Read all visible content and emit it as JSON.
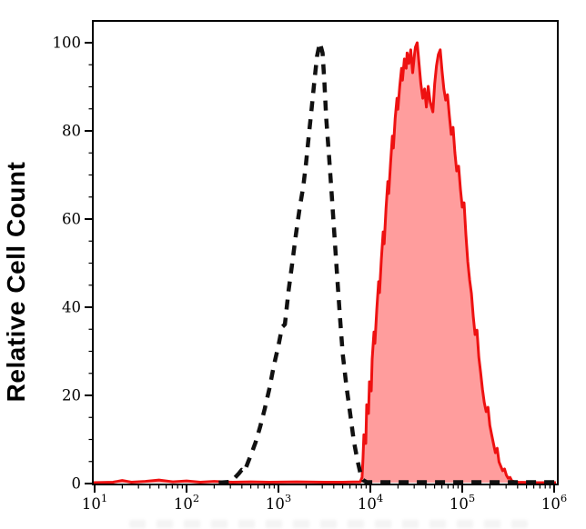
{
  "figure": {
    "background_color": "#ffffff",
    "axis_color": "#000000"
  },
  "chart_data": {
    "type": "line",
    "subtype": "flow-cytometry-histogram-overlay",
    "title": "",
    "xlabel": "",
    "ylabel": "Relative Cell Count",
    "x_scale": "log10",
    "x_tick_labels": [
      "10¹",
      "10²",
      "10³",
      "10⁴",
      "10⁵",
      "10⁶"
    ],
    "x_tick_exponents": [
      1,
      2,
      3,
      4,
      5,
      6
    ],
    "x_minor_ticks": "log-spaced 2-9 within each decade",
    "xlim_exponents": [
      0.98,
      6.04
    ],
    "y_ticks": [
      0,
      20,
      40,
      60,
      80,
      100
    ],
    "y_minor_step": 5,
    "ylim": [
      0,
      105
    ],
    "grid": false,
    "legend_position": "none",
    "series": [
      {
        "name": "dashed-black-histogram",
        "line_style": "dashed",
        "color": "#111111",
        "fill": "none",
        "peak_x_log10": 3.45,
        "peak_value": 100,
        "points_log10x_value": [
          [
            2.35,
            0.2
          ],
          [
            2.48,
            0.4
          ],
          [
            2.52,
            1.2
          ],
          [
            2.57,
            2.3
          ],
          [
            2.6,
            3.1
          ],
          [
            2.63,
            2.7
          ],
          [
            2.67,
            4.9
          ],
          [
            2.71,
            7.0
          ],
          [
            2.75,
            9.3
          ],
          [
            2.8,
            12.8
          ],
          [
            2.85,
            16.9
          ],
          [
            2.9,
            21.4
          ],
          [
            2.95,
            26.8
          ],
          [
            3.0,
            31.3
          ],
          [
            3.04,
            35.5
          ],
          [
            3.07,
            36.1
          ],
          [
            3.11,
            43.7
          ],
          [
            3.15,
            49.9
          ],
          [
            3.19,
            56.5
          ],
          [
            3.23,
            62.3
          ],
          [
            3.27,
            67.4
          ],
          [
            3.3,
            72.6
          ],
          [
            3.33,
            78.8
          ],
          [
            3.36,
            84.9
          ],
          [
            3.39,
            91.1
          ],
          [
            3.42,
            96.9
          ],
          [
            3.45,
            100
          ],
          [
            3.48,
            97.7
          ],
          [
            3.5,
            91.1
          ],
          [
            3.52,
            82.9
          ],
          [
            3.55,
            74.6
          ],
          [
            3.58,
            65.4
          ],
          [
            3.61,
            56.1
          ],
          [
            3.64,
            46.8
          ],
          [
            3.67,
            37.5
          ],
          [
            3.7,
            29.3
          ],
          [
            3.74,
            22.1
          ],
          [
            3.78,
            15.9
          ],
          [
            3.82,
            9.7
          ],
          [
            3.86,
            5.2
          ],
          [
            3.89,
            2.5
          ],
          [
            3.92,
            0.8
          ],
          [
            3.96,
            0.3
          ],
          [
            4.2,
            0.3
          ],
          [
            4.6,
            0.3
          ],
          [
            5.0,
            0.3
          ],
          [
            5.4,
            0.3
          ],
          [
            5.8,
            0.3
          ],
          [
            6.02,
            0.3
          ]
        ]
      },
      {
        "name": "red-filled-histogram",
        "line_style": "solid",
        "color": "#ee1111",
        "fill": "#ff9d9d",
        "peak_x_log10": 4.51,
        "peak_value": 100,
        "points_log10x_value": [
          [
            0.98,
            0.2
          ],
          [
            1.2,
            0.3
          ],
          [
            1.3,
            0.7
          ],
          [
            1.4,
            0.3
          ],
          [
            1.55,
            0.5
          ],
          [
            1.7,
            0.8
          ],
          [
            1.85,
            0.4
          ],
          [
            2.0,
            0.6
          ],
          [
            2.15,
            0.3
          ],
          [
            2.3,
            0.5
          ],
          [
            2.5,
            0.3
          ],
          [
            2.7,
            0.4
          ],
          [
            2.9,
            0.3
          ],
          [
            3.2,
            0.4
          ],
          [
            3.5,
            0.3
          ],
          [
            3.7,
            0.3
          ],
          [
            3.89,
            0.4
          ],
          [
            3.91,
            1.4
          ],
          [
            3.92,
            5.6
          ],
          [
            3.93,
            11.1
          ],
          [
            3.95,
            9.1
          ],
          [
            3.96,
            17.9
          ],
          [
            3.98,
            15.9
          ],
          [
            3.99,
            23.1
          ],
          [
            4.01,
            21.0
          ],
          [
            4.02,
            28.2
          ],
          [
            4.04,
            34.4
          ],
          [
            4.05,
            31.8
          ],
          [
            4.07,
            39.6
          ],
          [
            4.09,
            45.8
          ],
          [
            4.1,
            43.3
          ],
          [
            4.12,
            50.9
          ],
          [
            4.14,
            57.1
          ],
          [
            4.15,
            54.4
          ],
          [
            4.17,
            62.3
          ],
          [
            4.19,
            68.5
          ],
          [
            4.2,
            65.8
          ],
          [
            4.22,
            72.6
          ],
          [
            4.24,
            78.8
          ],
          [
            4.25,
            76.1
          ],
          [
            4.27,
            82.9
          ],
          [
            4.29,
            87.4
          ],
          [
            4.3,
            84.9
          ],
          [
            4.32,
            90.1
          ],
          [
            4.34,
            94.2
          ],
          [
            4.35,
            91.5
          ],
          [
            4.37,
            96.3
          ],
          [
            4.39,
            94.2
          ],
          [
            4.4,
            97.7
          ],
          [
            4.42,
            95.3
          ],
          [
            4.44,
            98.4
          ],
          [
            4.46,
            93.2
          ],
          [
            4.48,
            97.3
          ],
          [
            4.49,
            99.0
          ],
          [
            4.51,
            100
          ],
          [
            4.53,
            95.3
          ],
          [
            4.55,
            90.7
          ],
          [
            4.57,
            87.4
          ],
          [
            4.59,
            89.5
          ],
          [
            4.61,
            85.4
          ],
          [
            4.63,
            90.1
          ],
          [
            4.65,
            86.6
          ],
          [
            4.68,
            84.3
          ],
          [
            4.7,
            90.7
          ],
          [
            4.72,
            94.8
          ],
          [
            4.74,
            97.3
          ],
          [
            4.76,
            98.4
          ],
          [
            4.78,
            93.6
          ],
          [
            4.8,
            89.5
          ],
          [
            4.82,
            87.0
          ],
          [
            4.84,
            88.2
          ],
          [
            4.86,
            83.3
          ],
          [
            4.88,
            79.2
          ],
          [
            4.9,
            80.8
          ],
          [
            4.92,
            75.1
          ],
          [
            4.94,
            70.9
          ],
          [
            4.96,
            72.0
          ],
          [
            4.98,
            66.8
          ],
          [
            5.0,
            62.7
          ],
          [
            5.02,
            63.7
          ],
          [
            5.04,
            56.5
          ],
          [
            5.06,
            50.3
          ],
          [
            5.08,
            46.2
          ],
          [
            5.1,
            43.1
          ],
          [
            5.12,
            37.9
          ],
          [
            5.14,
            33.8
          ],
          [
            5.16,
            34.8
          ],
          [
            5.18,
            28.7
          ],
          [
            5.2,
            25.2
          ],
          [
            5.22,
            21.4
          ],
          [
            5.24,
            18.4
          ],
          [
            5.26,
            16.3
          ],
          [
            5.28,
            17.3
          ],
          [
            5.3,
            13.2
          ],
          [
            5.32,
            11.1
          ],
          [
            5.34,
            9.1
          ],
          [
            5.36,
            7.0
          ],
          [
            5.38,
            8.0
          ],
          [
            5.4,
            4.9
          ],
          [
            5.42,
            3.9
          ],
          [
            5.44,
            2.9
          ],
          [
            5.46,
            3.3
          ],
          [
            5.48,
            1.9
          ],
          [
            5.5,
            1.2
          ],
          [
            5.52,
            1.4
          ],
          [
            5.54,
            0.6
          ],
          [
            5.57,
            0.4
          ],
          [
            5.61,
            0.3
          ],
          [
            5.8,
            0.2
          ],
          [
            6.02,
            0.2
          ]
        ]
      }
    ]
  },
  "colors": {
    "axis": "#000000",
    "dashed_series": "#111111",
    "red_stroke": "#ee1111",
    "red_fill": "#ff9d9d",
    "text": "#000000"
  }
}
